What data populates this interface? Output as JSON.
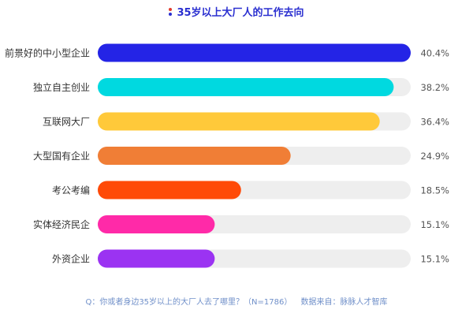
{
  "title": "35岁以上大厂人的工作去向",
  "colors": {
    "title": "#2a2fd0",
    "track": "#eeeeee",
    "label": "#333333",
    "value": "#555555",
    "footer": "#6f8fc9",
    "title_deco": [
      "#e23b2e",
      "#2a2fd0"
    ]
  },
  "chart_data": {
    "type": "bar",
    "orientation": "horizontal",
    "categories": [
      "前景好的中小型企业",
      "独立自主创业",
      "互联网大厂",
      "大型国有企业",
      "考公考编",
      "实体经济民企",
      "外资企业"
    ],
    "values": [
      40.4,
      38.2,
      36.4,
      24.9,
      18.5,
      15.1,
      15.1
    ],
    "value_labels": [
      "40.4%",
      "38.2%",
      "36.4%",
      "24.9%",
      "18.5%",
      "15.1%",
      "15.1%"
    ],
    "bar_colors": [
      "#2424e6",
      "#00d9e0",
      "#ffc93a",
      "#f07e36",
      "#ff4a08",
      "#ff2aa8",
      "#9b33f2"
    ],
    "xlim": [
      0,
      40.4
    ],
    "unit": "%",
    "grid": false
  },
  "footer": {
    "question": "Q：你或者身边35岁以上的大厂人去了哪里？（N=1786）",
    "source": "数据来自：脉脉人才智库"
  }
}
